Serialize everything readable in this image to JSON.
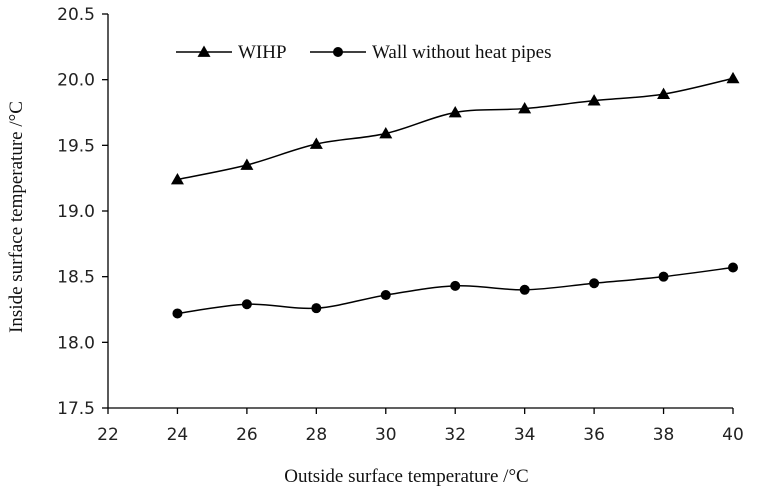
{
  "chart_data": {
    "type": "line",
    "xlabel": "Outside surface temperature /°C",
    "ylabel": "Inside surface temperature /°C",
    "xlim": [
      22,
      40
    ],
    "ylim": [
      17.5,
      20.5
    ],
    "x_ticks": [
      "22",
      "24",
      "26",
      "28",
      "30",
      "32",
      "34",
      "36",
      "38",
      "40"
    ],
    "y_ticks": [
      "17.5",
      "18.0",
      "18.5",
      "19.0",
      "19.5",
      "20.0",
      "20.5"
    ],
    "legend_position": "top",
    "x": [
      24,
      26,
      28,
      30,
      32,
      34,
      36,
      38,
      40
    ],
    "series": [
      {
        "name": "WIHP",
        "marker": "triangle",
        "values": [
          19.24,
          19.35,
          19.51,
          19.59,
          19.75,
          19.78,
          19.84,
          19.89,
          20.01
        ]
      },
      {
        "name": "Wall without heat pipes",
        "marker": "circle",
        "values": [
          18.22,
          18.29,
          18.26,
          18.36,
          18.43,
          18.4,
          18.45,
          18.5,
          18.57
        ]
      }
    ]
  }
}
